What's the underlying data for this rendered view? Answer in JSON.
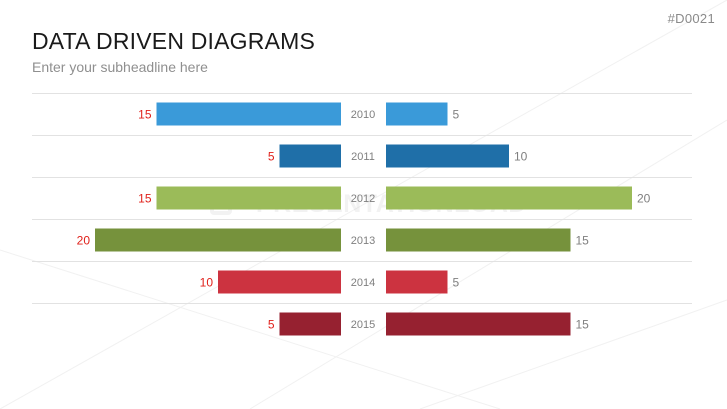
{
  "slide_id": "#D0021",
  "title": "DATA DRIVEN DIAGRAMS",
  "subtitle": "Enter your subheadline here",
  "watermark": "PRESENTATIONLOAD",
  "colors": {
    "label_left": "#e0201a",
    "label_right": "#7f7f7f",
    "year_label": "#7f7f7f",
    "divider": "#e2e2e2"
  },
  "chart_data": {
    "type": "bar",
    "orientation": "horizontal-butterfly",
    "categories": [
      "2010",
      "2011",
      "2012",
      "2013",
      "2014",
      "2015"
    ],
    "series": [
      {
        "side": "left",
        "values": [
          15,
          5,
          15,
          20,
          10,
          5
        ]
      },
      {
        "side": "right",
        "values": [
          5,
          10,
          20,
          15,
          5,
          15
        ]
      }
    ],
    "bar_colors": [
      "#3a9ad9",
      "#1f6fa8",
      "#9bbb59",
      "#76923c",
      "#cc3340",
      "#962130"
    ],
    "xlim": [
      0,
      20
    ]
  }
}
